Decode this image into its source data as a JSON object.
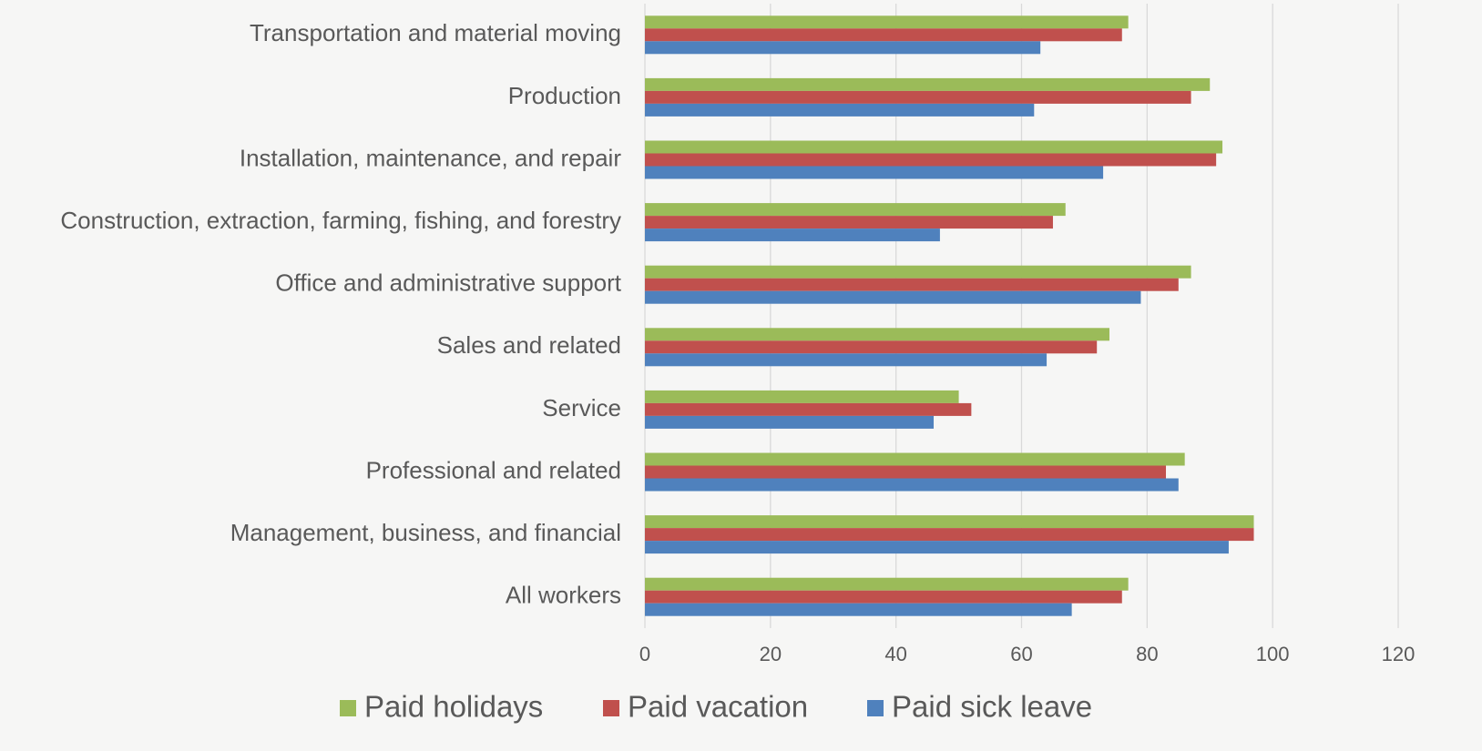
{
  "chart_data": {
    "type": "bar",
    "orientation": "horizontal",
    "categories": [
      "Transportation and material moving",
      "Production",
      "Installation, maintenance, and repair",
      "Construction, extraction, farming, fishing, and forestry",
      "Office and administrative support",
      "Sales and related",
      "Service",
      "Professional and related",
      "Management, business, and financial",
      "All workers"
    ],
    "series": [
      {
        "name": "Paid holidays",
        "color": "#9bbb59",
        "values": [
          77,
          90,
          92,
          67,
          87,
          74,
          50,
          86,
          97,
          77
        ]
      },
      {
        "name": "Paid vacation",
        "color": "#c0504d",
        "values": [
          76,
          87,
          91,
          65,
          85,
          72,
          52,
          83,
          97,
          76
        ]
      },
      {
        "name": "Paid sick leave",
        "color": "#4f81bd",
        "values": [
          63,
          62,
          73,
          47,
          79,
          64,
          46,
          85,
          93,
          68
        ]
      }
    ],
    "xlim": [
      0,
      120
    ],
    "xticks": [
      0,
      20,
      40,
      60,
      80,
      100,
      120
    ],
    "grid": true,
    "legend": "bottom"
  }
}
